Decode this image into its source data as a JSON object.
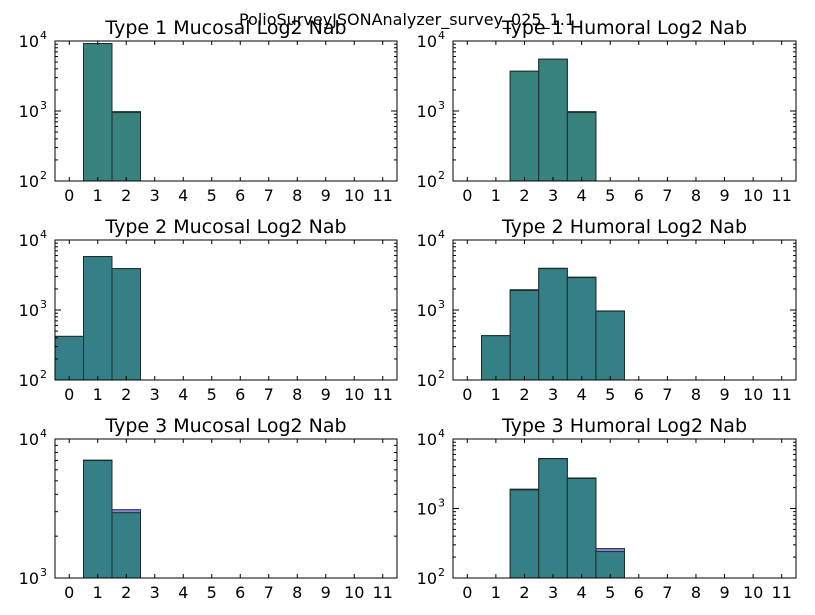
{
  "figure_title": "PolioSurveyJSONAnalyzer_survey_025_1.1",
  "chart_data": [
    {
      "type": "bar",
      "title": "Type 1 Mucosal Log2 Nab",
      "categories": [
        "0",
        "1",
        "2",
        "3",
        "4",
        "5",
        "6",
        "7",
        "8",
        "9",
        "10",
        "11"
      ],
      "x_tick_labels": [
        "0",
        "1",
        "2",
        "3",
        "4",
        "5",
        "6",
        "7",
        "8",
        "9",
        "10",
        "11"
      ],
      "y_scale": "log",
      "ylim": [
        100,
        10000
      ],
      "y_tick_labels": [
        {
          "base": "10",
          "exp": "2"
        },
        {
          "base": "10",
          "exp": "3"
        },
        {
          "base": "10",
          "exp": "4"
        }
      ],
      "series": [
        {
          "color": "#2f7f7f",
          "values": [
            0,
            9200,
            950,
            0,
            0,
            0,
            0,
            0,
            0,
            0,
            0,
            0
          ]
        },
        {
          "color": "#8a9a3a",
          "values": [
            0,
            9200,
            980,
            0,
            0,
            0,
            0,
            0,
            0,
            0,
            0,
            0
          ]
        }
      ]
    },
    {
      "type": "bar",
      "title": "Type 1 Humoral Log2 Nab",
      "categories": [
        "0",
        "1",
        "2",
        "3",
        "4",
        "5",
        "6",
        "7",
        "8",
        "9",
        "10",
        "11"
      ],
      "x_tick_labels": [
        "0",
        "1",
        "2",
        "3",
        "4",
        "5",
        "6",
        "7",
        "8",
        "9",
        "10",
        "11"
      ],
      "y_scale": "log",
      "ylim": [
        100,
        10000
      ],
      "y_tick_labels": [
        {
          "base": "10",
          "exp": "2"
        },
        {
          "base": "10",
          "exp": "3"
        },
        {
          "base": "10",
          "exp": "4"
        }
      ],
      "series": [
        {
          "color": "#2f7f7f",
          "values": [
            0,
            0,
            3700,
            5500,
            950,
            0,
            0,
            0,
            0,
            0,
            0,
            0
          ]
        },
        {
          "color": "#8a9a3a",
          "values": [
            0,
            0,
            3700,
            5500,
            980,
            0,
            0,
            0,
            0,
            0,
            0,
            0
          ]
        }
      ]
    },
    {
      "type": "bar",
      "title": "Type 2 Mucosal Log2 Nab",
      "categories": [
        "0",
        "1",
        "2",
        "3",
        "4",
        "5",
        "6",
        "7",
        "8",
        "9",
        "10",
        "11"
      ],
      "x_tick_labels": [
        "0",
        "1",
        "2",
        "3",
        "4",
        "5",
        "6",
        "7",
        "8",
        "9",
        "10",
        "11"
      ],
      "y_scale": "log",
      "ylim": [
        100,
        10000
      ],
      "y_tick_labels": [
        {
          "base": "10",
          "exp": "2"
        },
        {
          "base": "10",
          "exp": "3"
        },
        {
          "base": "10",
          "exp": "4"
        }
      ],
      "series": [
        {
          "color": "#2f7f7f",
          "values": [
            420,
            5800,
            3900,
            0,
            0,
            0,
            0,
            0,
            0,
            0,
            0,
            0
          ]
        },
        {
          "color": "#5a5ad0",
          "values": [
            420,
            5800,
            3900,
            0,
            0,
            0,
            0,
            0,
            0,
            0,
            0,
            0
          ]
        }
      ]
    },
    {
      "type": "bar",
      "title": "Type 2 Humoral Log2 Nab",
      "categories": [
        "0",
        "1",
        "2",
        "3",
        "4",
        "5",
        "6",
        "7",
        "8",
        "9",
        "10",
        "11"
      ],
      "x_tick_labels": [
        "0",
        "1",
        "2",
        "3",
        "4",
        "5",
        "6",
        "7",
        "8",
        "9",
        "10",
        "11"
      ],
      "y_scale": "log",
      "ylim": [
        100,
        10000
      ],
      "y_tick_labels": [
        {
          "base": "10",
          "exp": "2"
        },
        {
          "base": "10",
          "exp": "3"
        },
        {
          "base": "10",
          "exp": "4"
        }
      ],
      "series": [
        {
          "color": "#2f7f7f",
          "values": [
            0,
            430,
            1900,
            3900,
            2900,
            960,
            0,
            0,
            0,
            0,
            0,
            0
          ]
        },
        {
          "color": "#5a5ad0",
          "values": [
            0,
            430,
            1950,
            3950,
            2950,
            970,
            0,
            0,
            0,
            0,
            0,
            0
          ]
        }
      ]
    },
    {
      "type": "bar",
      "title": "Type 3 Mucosal Log2 Nab",
      "categories": [
        "0",
        "1",
        "2",
        "3",
        "4",
        "5",
        "6",
        "7",
        "8",
        "9",
        "10",
        "11"
      ],
      "x_tick_labels": [
        "0",
        "1",
        "2",
        "3",
        "4",
        "5",
        "6",
        "7",
        "8",
        "9",
        "10",
        "11"
      ],
      "y_scale": "log",
      "ylim": [
        1000,
        10000
      ],
      "y_tick_labels": [
        {
          "base": "10",
          "exp": "3"
        },
        {
          "base": "10",
          "exp": "4"
        }
      ],
      "series": [
        {
          "color": "#2f7f7f",
          "values": [
            0,
            7000,
            2950,
            0,
            0,
            0,
            0,
            0,
            0,
            0,
            0,
            0
          ]
        },
        {
          "color": "#5a5ad0",
          "values": [
            0,
            7050,
            3100,
            0,
            0,
            0,
            0,
            0,
            0,
            0,
            0,
            0
          ]
        }
      ]
    },
    {
      "type": "bar",
      "title": "Type 3 Humoral Log2 Nab",
      "categories": [
        "0",
        "1",
        "2",
        "3",
        "4",
        "5",
        "6",
        "7",
        "8",
        "9",
        "10",
        "11"
      ],
      "x_tick_labels": [
        "0",
        "1",
        "2",
        "3",
        "4",
        "5",
        "6",
        "7",
        "8",
        "9",
        "10",
        "11"
      ],
      "y_scale": "log",
      "ylim": [
        100,
        10000
      ],
      "y_tick_labels": [
        {
          "base": "10",
          "exp": "2"
        },
        {
          "base": "10",
          "exp": "3"
        },
        {
          "base": "10",
          "exp": "4"
        }
      ],
      "series": [
        {
          "color": "#2f7f7f",
          "values": [
            0,
            0,
            1850,
            5200,
            2700,
            240,
            0,
            0,
            0,
            0,
            0,
            0
          ]
        },
        {
          "color": "#5a5ad0",
          "values": [
            0,
            0,
            1900,
            5250,
            2750,
            265,
            0,
            0,
            0,
            0,
            0,
            0
          ]
        }
      ]
    }
  ]
}
